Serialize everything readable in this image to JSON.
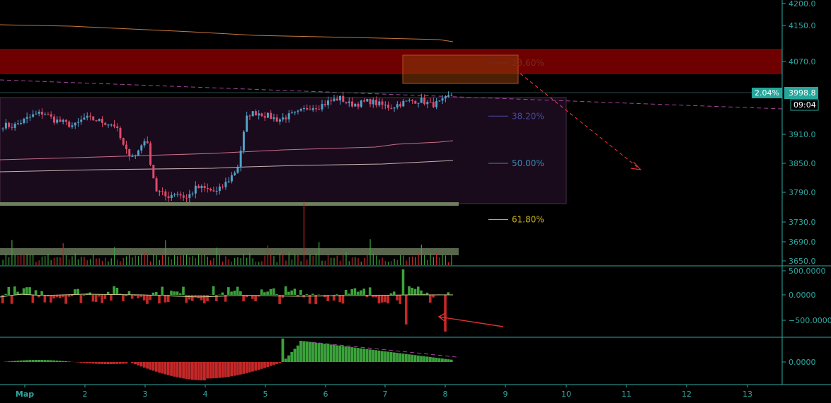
{
  "colors": {
    "background": "#000000",
    "axis": "#2ea7a0",
    "up": "#4ea3c9",
    "down": "#e04a6a",
    "resistance": "#7a0000",
    "range_box": "#1a0a1c",
    "vol_up": "#3ba23b",
    "vol_down": "#c62828"
  },
  "chart_data": [
    {
      "type": "candlestick",
      "pane": "price",
      "ylim": [
        3650,
        4200
      ],
      "y_ticks": [
        "4200.0",
        "4150.0",
        "4070.0",
        "3910.0",
        "3850.0",
        "3790.0",
        "3730.0",
        "3690.0",
        "3650.0"
      ],
      "x_ticks": [
        "Мар",
        "2",
        "3",
        "4",
        "5",
        "6",
        "7",
        "8",
        "9",
        "10",
        "11",
        "12",
        "13"
      ],
      "last_price": "3998.8",
      "change_pct": "2.04%",
      "countdown": "09:04",
      "resistance_zone": [
        4030,
        4090
      ],
      "range_box": [
        3780,
        3995
      ],
      "fib_levels": [
        {
          "label": "23.60%",
          "price": 4067
        },
        {
          "label": "38.20%",
          "price": 3950
        },
        {
          "label": "50.00%",
          "price": 3850
        },
        {
          "label": "61.80%",
          "price": 3735
        }
      ],
      "closes": [
        3930,
        3928,
        3940,
        3952,
        3958,
        3942,
        3935,
        3928,
        3946,
        3942,
        3936,
        3930,
        3875,
        3865,
        3905,
        3795,
        3781,
        3790,
        3778,
        3800,
        3796,
        3790,
        3812,
        3840,
        3955,
        3958,
        3950,
        3942,
        3950,
        3957,
        3970,
        3972,
        3982,
        3990,
        3976,
        3978,
        3983,
        3975,
        3970,
        3978,
        3983,
        3985,
        3975,
        3980,
        3998
      ]
    },
    {
      "type": "histogram",
      "pane": "delta",
      "y_ticks": [
        "500.0000",
        "0.0000",
        "−500.0000"
      ]
    },
    {
      "type": "histogram",
      "pane": "oscillator",
      "y_ticks": [
        "0.0000"
      ]
    }
  ]
}
